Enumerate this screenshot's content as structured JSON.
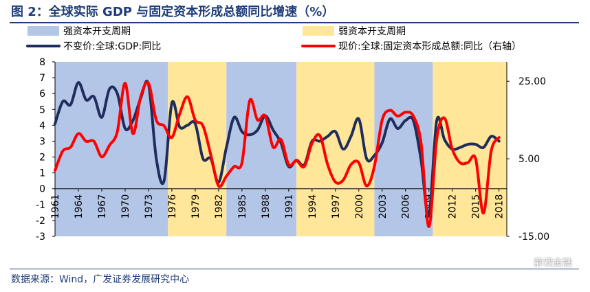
{
  "figure": {
    "title": "图 2：全球实际 GDP 与固定资本形成总额同比增速（%）",
    "source": "数据来源：Wind，广发证券发展研究中心",
    "watermark": "静观金融"
  },
  "chart_data": {
    "type": "line",
    "title": "全球实际 GDP 与固定资本形成总额同比增速（%）",
    "legend": {
      "position": "top",
      "entries": [
        {
          "label": "强资本开支周期",
          "kind": "band",
          "color": "#b4c6e7"
        },
        {
          "label": "弱资本开支周期",
          "kind": "band",
          "color": "#ffe699"
        },
        {
          "label": "不变价:全球:GDP:同比",
          "kind": "line",
          "color": "#1f2d5c"
        },
        {
          "label": "现价:全球:固定资本形成总额:同比（右轴）",
          "kind": "line",
          "color": "#ff0000"
        }
      ]
    },
    "x_range": [
      1961,
      2019
    ],
    "x_ticks": [
      "1961",
      "1964",
      "1967",
      "1970",
      "1973",
      "1976",
      "1979",
      "1982",
      "1985",
      "1988",
      "1991",
      "1994",
      "1997",
      "2000",
      "2003",
      "2006",
      "2009",
      "2012",
      "2015",
      "2018"
    ],
    "y_left": {
      "range": [
        -3,
        8
      ],
      "ticks": [
        "-3",
        "-2",
        "-1",
        "0",
        "1",
        "2",
        "3",
        "4",
        "5",
        "6",
        "7",
        "8"
      ]
    },
    "y_right": {
      "range": [
        -15,
        30
      ],
      "ticks": [
        "-15.00",
        "5.00",
        "25.00"
      ]
    },
    "bands": [
      {
        "start": 1961,
        "end": 1975.5,
        "type": "strong"
      },
      {
        "start": 1975.5,
        "end": 1983,
        "type": "weak"
      },
      {
        "start": 1983,
        "end": 1992,
        "type": "strong"
      },
      {
        "start": 1992,
        "end": 2002,
        "type": "weak"
      },
      {
        "start": 2002,
        "end": 2009.5,
        "type": "strong"
      },
      {
        "start": 2009.5,
        "end": 2019,
        "type": "weak"
      }
    ],
    "series": [
      {
        "name": "不变价:全球:GDP:同比",
        "axis": "left",
        "color": "#1f2d5c",
        "x": [
          1961,
          1962,
          1963,
          1964,
          1965,
          1966,
          1967,
          1968,
          1969,
          1970,
          1971,
          1972,
          1973,
          1974,
          1975,
          1976,
          1977,
          1978,
          1979,
          1980,
          1981,
          1982,
          1983,
          1984,
          1985,
          1986,
          1987,
          1988,
          1989,
          1990,
          1991,
          1992,
          1993,
          1994,
          1995,
          1996,
          1997,
          1998,
          1999,
          2000,
          2001,
          2002,
          2003,
          2004,
          2005,
          2006,
          2007,
          2008,
          2009,
          2010,
          2011,
          2012,
          2013,
          2014,
          2015,
          2016,
          2017,
          2018
        ],
        "y": [
          4.1,
          5.5,
          5.3,
          6.7,
          5.6,
          5.8,
          4.5,
          6.3,
          6.0,
          3.8,
          4.3,
          5.7,
          6.6,
          1.9,
          0.5,
          5.4,
          3.9,
          4.0,
          4.1,
          1.9,
          1.9,
          0.4,
          2.6,
          4.5,
          3.6,
          3.4,
          3.7,
          4.6,
          3.7,
          2.9,
          1.4,
          1.8,
          1.5,
          3.0,
          3.0,
          3.3,
          3.6,
          2.5,
          3.3,
          4.4,
          1.9,
          2.1,
          2.9,
          4.4,
          3.8,
          4.3,
          4.3,
          1.8,
          -1.7,
          4.3,
          3.1,
          2.5,
          2.6,
          2.8,
          2.8,
          2.6,
          3.3,
          3.0
        ]
      },
      {
        "name": "现价:全球:固定资本形成总额:同比（右轴）",
        "axis": "right",
        "color": "#ff0000",
        "x": [
          1961,
          1962,
          1963,
          1964,
          1965,
          1966,
          1967,
          1968,
          1969,
          1970,
          1971,
          1972,
          1973,
          1974,
          1975,
          1976,
          1977,
          1978,
          1979,
          1980,
          1981,
          1982,
          1983,
          1984,
          1985,
          1986,
          1987,
          1988,
          1989,
          1990,
          1991,
          1992,
          1993,
          1994,
          1995,
          1996,
          1997,
          1998,
          1999,
          2000,
          2001,
          2002,
          2003,
          2004,
          2005,
          2006,
          2007,
          2008,
          2009,
          2010,
          2011,
          2012,
          2013,
          2014,
          2015,
          2016,
          2017,
          2018
        ],
        "y": [
          2.0,
          7.0,
          8.0,
          11.5,
          9.5,
          9.5,
          5.5,
          8.5,
          12.0,
          24.5,
          11.5,
          21.0,
          24.5,
          15.0,
          13.5,
          10.5,
          16.5,
          21.0,
          15.0,
          13.5,
          6.0,
          -2.0,
          0.5,
          3.0,
          4.0,
          20.0,
          15.0,
          16.0,
          8.0,
          10.0,
          3.5,
          4.5,
          3.0,
          9.0,
          11.0,
          3.5,
          -1.0,
          -0.5,
          3.5,
          4.0,
          -2.0,
          3.0,
          15.0,
          17.5,
          16.0,
          17.0,
          16.0,
          9.0,
          -12.5,
          10.0,
          15.5,
          7.5,
          4.0,
          4.0,
          5.0,
          -9.0,
          7.0,
          10.5
        ]
      }
    ]
  }
}
